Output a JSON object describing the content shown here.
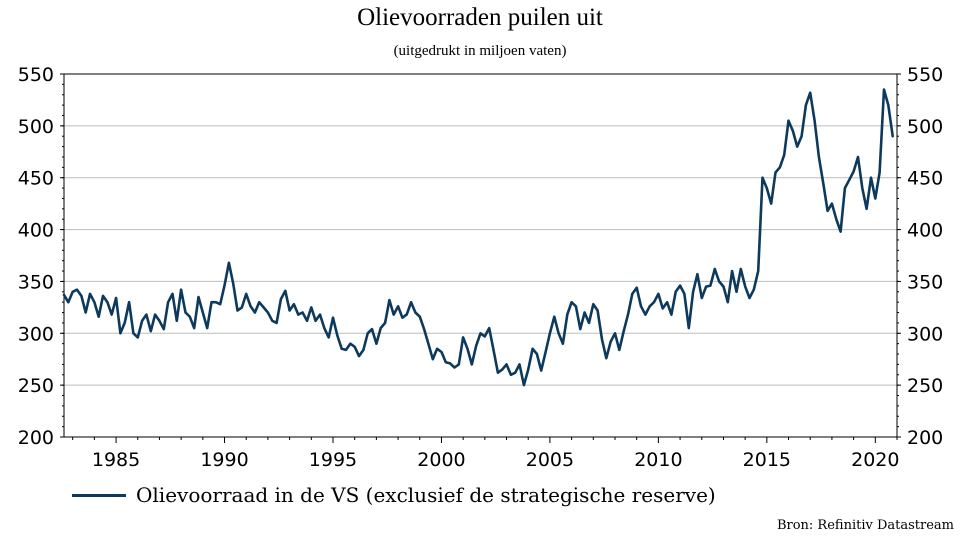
{
  "header": {
    "title": "Olievoorraden puilen uit",
    "subtitle": "(uitgedrukt in miljoen vaten)"
  },
  "source": "Bron: Refinitiv Datastream",
  "colors": {
    "series": "#0d3a5c",
    "grid": "#bdbdbd",
    "axis": "#000000"
  },
  "chart_data": {
    "type": "line",
    "title": "Olievoorraden puilen uit",
    "subtitle": "(uitgedrukt in miljoen vaten)",
    "xlabel": "",
    "ylabel": "",
    "xlim": [
      1982.6,
      2021.0
    ],
    "ylim": [
      200,
      550
    ],
    "y_ticks": [
      200,
      250,
      300,
      350,
      400,
      450,
      500,
      550
    ],
    "x_ticks": [
      1985,
      1990,
      1995,
      2000,
      2005,
      2010,
      2015,
      2020
    ],
    "y_axis_both_sides": true,
    "grid": "horizontal",
    "legend_position": "bottom-left",
    "series": [
      {
        "name": "Olievoorraad in de VS (exclusief de strategische reserve)",
        "color": "#0d3a5c",
        "x": [
          1982.6,
          1982.8,
          1983.0,
          1983.2,
          1983.4,
          1983.6,
          1983.8,
          1984.0,
          1984.2,
          1984.4,
          1984.6,
          1984.8,
          1985.0,
          1985.2,
          1985.4,
          1985.6,
          1985.8,
          1986.0,
          1986.2,
          1986.4,
          1986.6,
          1986.8,
          1987.0,
          1987.2,
          1987.4,
          1987.6,
          1987.8,
          1988.0,
          1988.2,
          1988.4,
          1988.6,
          1988.8,
          1989.0,
          1989.2,
          1989.4,
          1989.6,
          1989.8,
          1990.0,
          1990.2,
          1990.4,
          1990.6,
          1990.8,
          1991.0,
          1991.2,
          1991.4,
          1991.6,
          1991.8,
          1992.0,
          1992.2,
          1992.4,
          1992.6,
          1992.8,
          1993.0,
          1993.2,
          1993.4,
          1993.6,
          1993.8,
          1994.0,
          1994.2,
          1994.4,
          1994.6,
          1994.8,
          1995.0,
          1995.2,
          1995.4,
          1995.6,
          1995.8,
          1996.0,
          1996.2,
          1996.4,
          1996.6,
          1996.8,
          1997.0,
          1997.2,
          1997.4,
          1997.6,
          1997.8,
          1998.0,
          1998.2,
          1998.4,
          1998.6,
          1998.8,
          1999.0,
          1999.2,
          1999.4,
          1999.6,
          1999.8,
          2000.0,
          2000.2,
          2000.4,
          2000.6,
          2000.8,
          2001.0,
          2001.2,
          2001.4,
          2001.6,
          2001.8,
          2002.0,
          2002.2,
          2002.4,
          2002.6,
          2002.8,
          2003.0,
          2003.2,
          2003.4,
          2003.6,
          2003.8,
          2004.0,
          2004.2,
          2004.4,
          2004.6,
          2004.8,
          2005.0,
          2005.2,
          2005.4,
          2005.6,
          2005.8,
          2006.0,
          2006.2,
          2006.4,
          2006.6,
          2006.8,
          2007.0,
          2007.2,
          2007.4,
          2007.6,
          2007.8,
          2008.0,
          2008.2,
          2008.4,
          2008.6,
          2008.8,
          2009.0,
          2009.2,
          2009.4,
          2009.6,
          2009.8,
          2010.0,
          2010.2,
          2010.4,
          2010.6,
          2010.8,
          2011.0,
          2011.2,
          2011.4,
          2011.6,
          2011.8,
          2012.0,
          2012.2,
          2012.4,
          2012.6,
          2012.8,
          2013.0,
          2013.2,
          2013.4,
          2013.6,
          2013.8,
          2014.0,
          2014.2,
          2014.4,
          2014.6,
          2014.8,
          2015.0,
          2015.2,
          2015.4,
          2015.6,
          2015.8,
          2016.0,
          2016.2,
          2016.4,
          2016.6,
          2016.8,
          2017.0,
          2017.2,
          2017.4,
          2017.6,
          2017.8,
          2018.0,
          2018.2,
          2018.4,
          2018.6,
          2018.8,
          2019.0,
          2019.2,
          2019.4,
          2019.6,
          2019.8,
          2020.0,
          2020.2,
          2020.4,
          2020.6,
          2020.8
        ],
        "values": [
          337,
          330,
          340,
          342,
          336,
          320,
          338,
          330,
          316,
          336,
          330,
          318,
          334,
          300,
          310,
          330,
          300,
          296,
          312,
          318,
          302,
          318,
          312,
          304,
          330,
          338,
          312,
          342,
          320,
          316,
          305,
          335,
          320,
          305,
          330,
          330,
          328,
          346,
          368,
          348,
          322,
          325,
          338,
          326,
          320,
          330,
          325,
          320,
          312,
          310,
          333,
          341,
          322,
          328,
          318,
          320,
          312,
          325,
          312,
          318,
          305,
          296,
          315,
          298,
          285,
          284,
          290,
          287,
          278,
          284,
          300,
          304,
          290,
          305,
          310,
          332,
          318,
          326,
          315,
          318,
          330,
          320,
          316,
          304,
          290,
          275,
          285,
          282,
          272,
          271,
          267,
          270,
          296,
          285,
          270,
          288,
          300,
          297,
          305,
          284,
          262,
          265,
          270,
          260,
          262,
          270,
          250,
          265,
          285,
          280,
          264,
          282,
          300,
          316,
          300,
          290,
          318,
          330,
          326,
          304,
          320,
          310,
          328,
          322,
          294,
          276,
          292,
          300,
          284,
          302,
          318,
          338,
          344,
          326,
          318,
          326,
          330,
          338,
          324,
          330,
          318,
          340,
          346,
          338,
          305,
          340,
          357,
          334,
          345,
          346,
          362,
          350,
          345,
          330,
          360,
          340,
          362,
          345,
          334,
          342,
          360,
          450,
          440,
          425,
          455,
          460,
          472,
          505,
          495,
          480,
          490,
          520,
          532,
          505,
          470,
          445,
          418,
          425,
          410,
          398,
          440,
          448,
          456,
          470,
          440,
          420,
          450,
          430,
          455,
          535,
          520,
          490
        ]
      }
    ]
  }
}
